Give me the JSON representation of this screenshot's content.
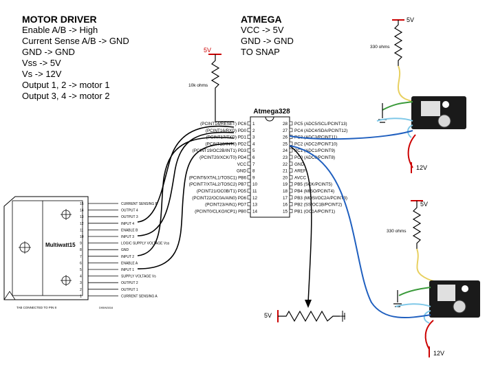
{
  "motor_driver": {
    "title": "MOTOR DRIVER",
    "lines": [
      "Enable A/B -> High",
      "Current Sense A/B -> GND",
      "GND -> GND",
      "Vss -> 5V",
      "Vs -> 12V",
      "Output 1, 2 -> motor 1",
      "Output 3, 4 -> motor 2"
    ]
  },
  "atmega": {
    "title": "ATMEGA",
    "lines": [
      "VCC -> 5V",
      "GND -> GND",
      "TO SNAP"
    ]
  },
  "chip": {
    "name": "Atmega328",
    "left_pins": [
      {
        "label": "(PCINT14/RESET) PC6",
        "num": "1"
      },
      {
        "label": "(PCINT16/RXD) PD0",
        "num": "2"
      },
      {
        "label": "(PCINT17/TXD) PD1",
        "num": "3"
      },
      {
        "label": "(PCINT18/INT0) PD2",
        "num": "4"
      },
      {
        "label": "(PCINT19/OC2B/INT1) PD3",
        "num": "5"
      },
      {
        "label": "(PCINT20/XCK/T0) PD4",
        "num": "6"
      },
      {
        "label": "VCC",
        "num": "7"
      },
      {
        "label": "GND",
        "num": "8"
      },
      {
        "label": "(PCINT6/XTAL1/TOSC1) PB6",
        "num": "9"
      },
      {
        "label": "(PCINT7/XTAL2/TOSC2) PB7",
        "num": "10"
      },
      {
        "label": "(PCINT21/OC0B/T1) PD5",
        "num": "11"
      },
      {
        "label": "(PCINT22/OC0A/AIN0) PD6",
        "num": "12"
      },
      {
        "label": "(PCINT23/AIN1) PD7",
        "num": "13"
      },
      {
        "label": "(PCINT0/CLKO/ICP1) PB0",
        "num": "14"
      }
    ],
    "right_pins": [
      {
        "num": "28",
        "label": "PC5 (ADC5/SCL/PCINT13)"
      },
      {
        "num": "27",
        "label": "PC4 (ADC4/SDA/PCINT12)"
      },
      {
        "num": "26",
        "label": "PC3 (ADC3/PCINT11)"
      },
      {
        "num": "25",
        "label": "PC2 (ADC2/PCINT10)"
      },
      {
        "num": "24",
        "label": "PC1 (ADC1/PCINT9)"
      },
      {
        "num": "23",
        "label": "PC0 (ADC0/PCINT8)"
      },
      {
        "num": "22",
        "label": "GND"
      },
      {
        "num": "21",
        "label": "AREF"
      },
      {
        "num": "20",
        "label": "AVCC"
      },
      {
        "num": "19",
        "label": "PB5 (SCK/PCINT5)"
      },
      {
        "num": "18",
        "label": "PB4 (MISO/PCINT4)"
      },
      {
        "num": "17",
        "label": "PB3 (MOSI/OC2A/PCINT3)"
      },
      {
        "num": "16",
        "label": "PB2 (SS/OC1B/PCINT2)"
      },
      {
        "num": "15",
        "label": "PB1 (OC1A/PCINT1)"
      }
    ]
  },
  "multiwatt": {
    "name": "Multiwatt15",
    "pins": [
      {
        "num": "15",
        "label": "CURRENT SENSING B"
      },
      {
        "num": "14",
        "label": "OUTPUT 4"
      },
      {
        "num": "13",
        "label": "OUTPUT 3"
      },
      {
        "num": "12",
        "label": "INPUT 4"
      },
      {
        "num": "11",
        "label": "ENABLE B"
      },
      {
        "num": "10",
        "label": "INPUT 3"
      },
      {
        "num": "9",
        "label": "LOGIC SUPPLY VOLTAGE Vss"
      },
      {
        "num": "8",
        "label": "GND"
      },
      {
        "num": "7",
        "label": "INPUT 2"
      },
      {
        "num": "6",
        "label": "ENABLE A"
      },
      {
        "num": "5",
        "label": "INPUT 1"
      },
      {
        "num": "4",
        "label": "SUPPLY VOLTAGE Vs"
      },
      {
        "num": "3",
        "label": "OUTPUT 2"
      },
      {
        "num": "2",
        "label": "OUTPUT 1"
      },
      {
        "num": "1",
        "label": "CURRENT SENSING A"
      }
    ],
    "tab_note": "TAB CONNECTED TO PIN 8",
    "part_code": "D95IN3016"
  },
  "power_labels": {
    "reset_supply": "5V",
    "reset_resistor": "10k ohms",
    "pot_supply": "5V",
    "sensor1_supply": "5V",
    "sensor1_resistor": "330 ohms",
    "sensor1_12v": "12V",
    "sensor2_supply": "5V",
    "sensor2_resistor": "330 ohms",
    "sensor2_12v": "12V"
  },
  "colors": {
    "power_red": "#cc0000",
    "wire_blue": "#1f5fbf",
    "wire_yellow": "#e8d060",
    "wire_green": "#3a9a3a",
    "wire_cyan": "#7fc8e8",
    "wire_black": "#000000"
  }
}
